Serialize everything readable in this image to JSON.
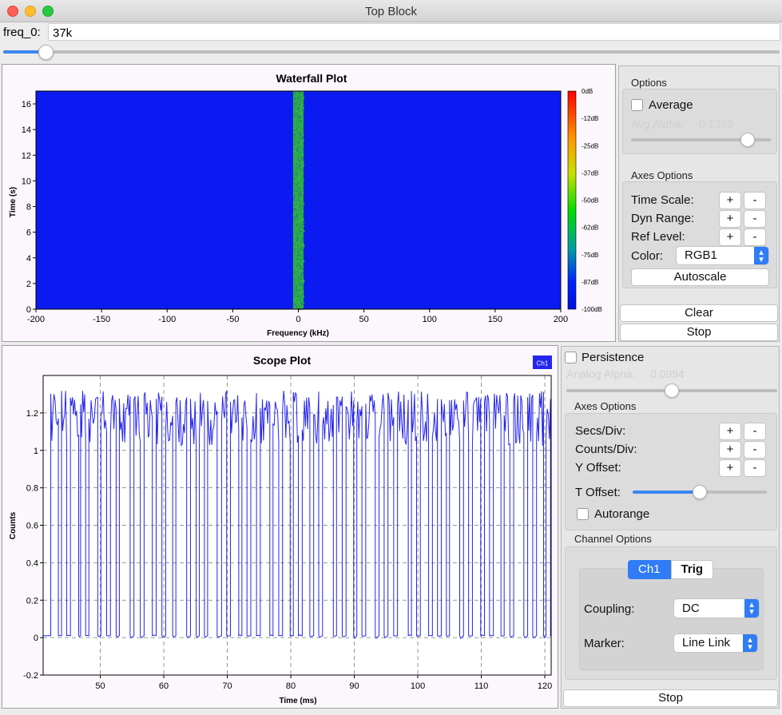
{
  "window": {
    "title": "Top Block"
  },
  "freq": {
    "label": "freq_0:",
    "value": "37k",
    "slider_fraction": 0.045
  },
  "waterfall": {
    "title": "Waterfall Plot",
    "xlabel": "Frequency (kHz)",
    "ylabel": "Time (s)",
    "colorbar_labels": [
      "0dB",
      "-12dB",
      "-25dB",
      "-37dB",
      "-50dB",
      "-62dB",
      "-75dB",
      "-87dB",
      "-100dB"
    ],
    "options": {
      "title": "Options",
      "average_label": "Average",
      "avg_alpha_label": "Avg Alpha:",
      "avg_alpha_value": "0.1333",
      "avg_alpha_fraction": 0.87
    },
    "axes_options": {
      "title": "Axes Options",
      "time_scale_label": "Time Scale:",
      "dyn_range_label": "Dyn Range:",
      "ref_level_label": "Ref Level:",
      "color_label": "Color:",
      "color_value": "RGB1",
      "autoscale_label": "Autoscale",
      "plus": "+",
      "minus": "-"
    },
    "clear_label": "Clear",
    "stop_label": "Stop"
  },
  "scope": {
    "title": "Scope Plot",
    "legend": "Ch1",
    "xlabel": "Time (ms)",
    "ylabel": "Counts",
    "persistence_label": "Persistence",
    "analog_alpha_label": "Analog Alpha:",
    "analog_alpha_value": "0.0994",
    "analog_alpha_fraction": 0.5,
    "axes_options": {
      "title": "Axes Options",
      "secs_div_label": "Secs/Div:",
      "counts_div_label": "Counts/Div:",
      "y_offset_label": "Y Offset:",
      "t_offset_label": "T Offset:",
      "t_offset_fraction": 0.5,
      "autorange_label": "Autorange",
      "plus": "+",
      "minus": "-"
    },
    "channel_options": {
      "title": "Channel Options",
      "tabs": [
        "Ch1",
        "Trig"
      ],
      "coupling_label": "Coupling:",
      "coupling_value": "DC",
      "marker_label": "Marker:",
      "marker_value": "Line Link"
    },
    "stop_label": "Stop"
  },
  "colors": {
    "accent": "#2f7cf6",
    "waterfall_bg": "#0a1af0",
    "trace": "#2525f0",
    "signal": "#2aa84a"
  },
  "chart_data": [
    {
      "type": "heatmap",
      "title": "Waterfall Plot",
      "xlabel": "Frequency (kHz)",
      "ylabel": "Time (s)",
      "xlim": [
        -200,
        200
      ],
      "ylim": [
        0,
        17
      ],
      "xticks": [
        -200,
        -150,
        -100,
        -50,
        0,
        50,
        100,
        150,
        200
      ],
      "yticks": [
        0,
        2,
        4,
        6,
        8,
        10,
        12,
        14,
        16
      ],
      "signal_center_khz": 0,
      "signal_width_khz": 5,
      "colorbar": {
        "min_db": -100,
        "max_db": 0
      }
    },
    {
      "type": "line",
      "title": "Scope Plot",
      "xlabel": "Time (ms)",
      "ylabel": "Counts",
      "xlim": [
        41,
        121
      ],
      "ylim": [
        -0.2,
        1.4
      ],
      "xticks": [
        50,
        60,
        70,
        80,
        90,
        100,
        110,
        120
      ],
      "yticks": [
        -0.2,
        0,
        0.2,
        0.4,
        0.6,
        0.8,
        1,
        1.2
      ],
      "grid": true,
      "series": [
        {
          "name": "Ch1",
          "pulses_ms": [
            [
              42.2,
              43.4
            ],
            [
              43.9,
              44.7
            ],
            [
              45.3,
              46.6
            ],
            [
              46.9,
              47.7
            ],
            [
              48.2,
              49.6
            ],
            [
              50.1,
              51.0
            ],
            [
              51.6,
              52.5
            ],
            [
              53.0,
              54.7
            ],
            [
              55.3,
              56.3
            ],
            [
              56.9,
              58.2
            ],
            [
              58.8,
              59.7
            ],
            [
              60.3,
              61.4
            ],
            [
              61.9,
              63.6
            ],
            [
              64.2,
              65.1
            ],
            [
              65.6,
              66.4
            ],
            [
              66.9,
              68.4
            ],
            [
              69.1,
              69.9
            ],
            [
              70.5,
              71.8
            ],
            [
              72.3,
              73.1
            ],
            [
              73.7,
              74.6
            ],
            [
              75.2,
              76.7
            ],
            [
              77.2,
              78.1
            ],
            [
              78.7,
              79.9
            ],
            [
              80.4,
              81.2
            ],
            [
              81.8,
              83.0
            ],
            [
              83.6,
              84.4
            ],
            [
              85.0,
              86.7
            ],
            [
              87.2,
              88.1
            ],
            [
              88.7,
              89.9
            ],
            [
              90.4,
              91.2
            ],
            [
              91.8,
              93.3
            ],
            [
              93.9,
              94.7
            ],
            [
              95.3,
              96.2
            ],
            [
              96.8,
              98.5
            ],
            [
              99.0,
              99.8
            ],
            [
              100.4,
              101.7
            ],
            [
              102.3,
              103.1
            ],
            [
              103.7,
              104.5
            ],
            [
              105.0,
              106.6
            ],
            [
              107.2,
              108.0
            ],
            [
              108.6,
              109.9
            ],
            [
              110.5,
              111.3
            ],
            [
              111.9,
              113.1
            ],
            [
              113.6,
              114.5
            ],
            [
              115.1,
              116.7
            ],
            [
              117.3,
              118.1
            ],
            [
              118.7,
              119.8
            ],
            [
              120.2,
              120.9
            ]
          ],
          "high_level": 1.1,
          "peak_level": 1.32,
          "low_level": 0.0
        }
      ]
    }
  ]
}
